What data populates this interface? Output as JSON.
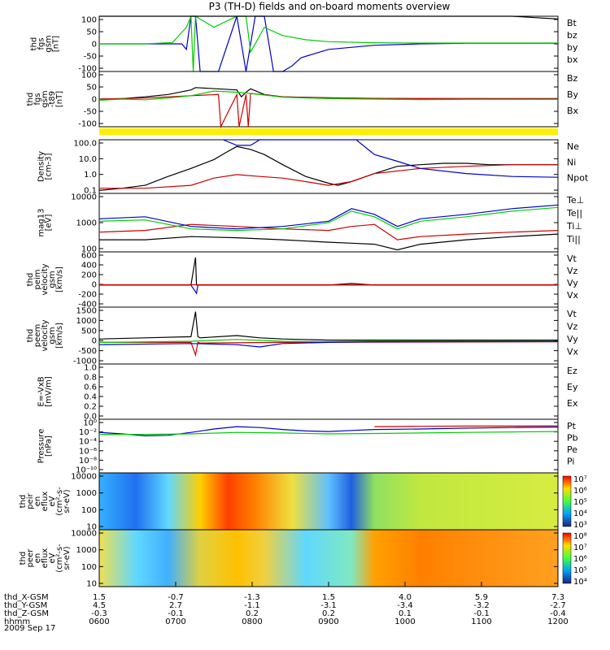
{
  "title": "P3 (TH-D) fields and on-board moments overview",
  "date_label": "2009 Sep 17",
  "colors": {
    "black": "#000000",
    "red": "#cc0000",
    "green": "#00cc00",
    "blue": "#0000cc",
    "yellow": "#ffee00"
  },
  "chart_data": [
    {
      "type": "line",
      "id": "fgs",
      "ylabel": [
        "thd",
        "fgs",
        "gsm",
        "[nT]"
      ],
      "yticks": [
        "100",
        "50",
        "0",
        "-50",
        "-100"
      ],
      "ylim": [
        -100,
        100
      ],
      "legend": [
        {
          "name": "Bt",
          "color": "#000000"
        },
        {
          "name": "bz",
          "color": "#cc0000"
        },
        {
          "name": "by",
          "color": "#00cc00"
        },
        {
          "name": "bx",
          "color": "#0000cc"
        }
      ],
      "series": [
        {
          "name": "bx",
          "color": "#0000cc",
          "x": [
            0,
            0.1,
            0.16,
            0.18,
            0.19,
            0.2,
            0.21,
            0.22,
            0.26,
            0.3,
            0.32,
            0.34,
            0.36,
            0.38,
            0.4,
            0.42,
            0.44,
            0.5,
            0.6,
            0.7,
            0.8,
            0.9,
            1.0
          ],
          "y": [
            0,
            0,
            0,
            0,
            -20,
            100,
            100,
            -100,
            -100,
            100,
            -100,
            100,
            100,
            -100,
            -100,
            -80,
            -50,
            -20,
            -5,
            0,
            2,
            2,
            2
          ]
        },
        {
          "name": "by",
          "color": "#00cc00",
          "x": [
            0,
            0.1,
            0.16,
            0.19,
            0.2,
            0.205,
            0.21,
            0.25,
            0.3,
            0.32,
            0.33,
            0.36,
            0.4,
            0.45,
            0.5,
            0.6,
            0.7,
            0.8,
            0.9,
            1.0
          ],
          "y": [
            0,
            0,
            5,
            60,
            100,
            -100,
            100,
            60,
            100,
            100,
            -30,
            60,
            30,
            15,
            8,
            4,
            3,
            3,
            3,
            3
          ]
        },
        {
          "name": "Bt",
          "color": "#000000",
          "x": [
            0,
            0.85,
            0.9,
            0.95,
            1.0
          ],
          "y": [
            100,
            100,
            100,
            95,
            90
          ]
        }
      ]
    },
    {
      "type": "line",
      "id": "fgs_dsl",
      "ylabel": [
        "thd",
        "fgs",
        "gsm",
        "-t89",
        "[nT]"
      ],
      "yticks": [
        "100",
        "50",
        "0",
        "-50",
        "-100"
      ],
      "ylim": [
        -120,
        120
      ],
      "legend": [
        {
          "name": "Bz",
          "color": "#000000"
        },
        {
          "name": "By",
          "color": "#cc0000"
        },
        {
          "name": "Bx",
          "color": "#00cc00"
        }
      ],
      "series": [
        {
          "name": "Bz",
          "color": "#000000",
          "x": [
            0,
            0.05,
            0.1,
            0.15,
            0.2,
            0.21,
            0.3,
            0.31,
            0.32,
            0.33,
            0.36,
            0.4,
            0.5,
            0.6,
            0.7,
            0.8,
            0.9,
            1.0
          ],
          "y": [
            0,
            2,
            10,
            20,
            40,
            50,
            40,
            10,
            30,
            45,
            20,
            10,
            6,
            3,
            2,
            2,
            2,
            2
          ]
        },
        {
          "name": "By",
          "color": "#cc0000",
          "x": [
            0,
            0.1,
            0.2,
            0.26,
            0.265,
            0.3,
            0.305,
            0.32,
            0.325,
            0.33,
            0.4,
            0.5,
            0.7,
            1.0
          ],
          "y": [
            0,
            5,
            15,
            20,
            -120,
            20,
            -120,
            20,
            -120,
            25,
            10,
            5,
            2,
            1
          ]
        },
        {
          "name": "Bx",
          "color": "#00cc00",
          "x": [
            0,
            0.05,
            0.1,
            0.15,
            0.2,
            0.25,
            0.3,
            0.35,
            0.4,
            0.5,
            0.6,
            0.7,
            0.8,
            1.0
          ],
          "y": [
            -5,
            0,
            -3,
            5,
            15,
            35,
            30,
            20,
            8,
            2,
            0,
            -2,
            -1,
            -1
          ]
        }
      ]
    },
    {
      "type": "line",
      "id": "density",
      "ylabel": [
        "Density",
        "[cm-3]"
      ],
      "yticks": [
        "100.0",
        "10.0",
        "1.0",
        "0.1"
      ],
      "log": true,
      "ylim": [
        0.1,
        150
      ],
      "legend": [
        {
          "name": "Ne",
          "color": "#cc0000"
        },
        {
          "name": "Ni",
          "color": "#000000"
        },
        {
          "name": "Npot",
          "color": "#0000cc"
        }
      ],
      "series": [
        {
          "name": "Ni",
          "color": "#000000",
          "x": [
            0,
            0.05,
            0.1,
            0.15,
            0.2,
            0.25,
            0.28,
            0.3,
            0.33,
            0.36,
            0.4,
            0.45,
            0.5,
            0.52,
            0.55,
            0.6,
            0.65,
            0.7,
            0.75,
            0.8,
            0.85,
            0.9,
            0.95,
            1.0
          ],
          "y": [
            0.15,
            0.2,
            0.3,
            1,
            3,
            10,
            30,
            60,
            40,
            20,
            5,
            1,
            0.4,
            0.3,
            0.5,
            1.5,
            4,
            5,
            6,
            6,
            5,
            5,
            5,
            5
          ]
        },
        {
          "name": "Ne",
          "color": "#cc0000",
          "x": [
            0,
            0.1,
            0.2,
            0.25,
            0.3,
            0.35,
            0.4,
            0.45,
            0.5,
            0.55,
            0.6,
            0.7,
            0.8,
            0.9,
            1.0
          ],
          "y": [
            0.2,
            0.2,
            0.3,
            0.8,
            1.3,
            1.0,
            0.8,
            0.5,
            0.3,
            0.5,
            1.5,
            3,
            4,
            5,
            5
          ]
        },
        {
          "name": "Npot",
          "color": "#0000cc",
          "x": [
            0.27,
            0.3,
            0.33,
            0.35,
            0.56,
            0.6,
            0.65,
            0.7,
            0.8,
            0.9,
            1.0
          ],
          "y": [
            150,
            70,
            70,
            150,
            150,
            20,
            8,
            3,
            1.5,
            1,
            0.9
          ]
        }
      ]
    },
    {
      "type": "line",
      "id": "temp",
      "ylabel": [
        "mag13",
        "[eV]"
      ],
      "yticks": [
        "10000",
        "1000",
        "100"
      ],
      "log": true,
      "ylim": [
        50,
        10000
      ],
      "legend": [
        {
          "name": "Te⊥",
          "color": "#cc0000"
        },
        {
          "name": "Te||",
          "color": "#000000"
        },
        {
          "name": "Ti⊥",
          "color": "#0000cc"
        },
        {
          "name": "Ti||",
          "color": "#00cc00"
        }
      ],
      "series": [
        {
          "name": "Te",
          "color": "#000000",
          "x": [
            0,
            0.1,
            0.2,
            0.3,
            0.4,
            0.5,
            0.55,
            0.6,
            0.65,
            0.7,
            0.8,
            0.9,
            1.0
          ],
          "y": [
            150,
            150,
            200,
            180,
            150,
            120,
            110,
            100,
            60,
            100,
            150,
            200,
            250
          ]
        },
        {
          "name": "Te⊥",
          "color": "#cc0000",
          "x": [
            0,
            0.1,
            0.2,
            0.3,
            0.4,
            0.5,
            0.55,
            0.6,
            0.65,
            0.7,
            0.8,
            0.9,
            1.0
          ],
          "y": [
            300,
            350,
            600,
            500,
            400,
            350,
            500,
            600,
            150,
            200,
            250,
            300,
            350
          ]
        },
        {
          "name": "Ti⊥",
          "color": "#0000cc",
          "x": [
            0,
            0.1,
            0.2,
            0.3,
            0.4,
            0.5,
            0.55,
            0.6,
            0.65,
            0.7,
            0.8,
            0.9,
            1.0
          ],
          "y": [
            1000,
            1200,
            500,
            400,
            500,
            800,
            2500,
            1500,
            500,
            1000,
            1500,
            2500,
            3500
          ]
        },
        {
          "name": "Ti||",
          "color": "#00cc00",
          "x": [
            0,
            0.1,
            0.2,
            0.3,
            0.4,
            0.5,
            0.55,
            0.6,
            0.65,
            0.7,
            0.8,
            0.9,
            1.0
          ],
          "y": [
            800,
            900,
            400,
            350,
            400,
            700,
            2000,
            1200,
            400,
            800,
            1200,
            2000,
            2800
          ]
        }
      ]
    },
    {
      "type": "line",
      "id": "peim_vel",
      "ylabel": [
        "thd",
        "peim",
        "velocity",
        "gsm",
        "[km/s]"
      ],
      "yticks": [
        "600",
        "400",
        "200",
        "0",
        "-200",
        "-400"
      ],
      "ylim": [
        -400,
        600
      ],
      "legend": [
        {
          "name": "Vt",
          "color": "#000000"
        },
        {
          "name": "Vz",
          "color": "#cc0000"
        },
        {
          "name": "Vy",
          "color": "#00cc00"
        },
        {
          "name": "Vx",
          "color": "#0000cc"
        }
      ],
      "series": [
        {
          "name": "Vt",
          "color": "#000000",
          "x": [
            0,
            0.2,
            0.21,
            0.212,
            0.22,
            0.5,
            0.55,
            0.6,
            1.0
          ],
          "y": [
            0,
            0,
            500,
            0,
            0,
            0,
            30,
            0,
            0
          ]
        },
        {
          "name": "Vx",
          "color": "#0000cc",
          "x": [
            0,
            0.2,
            0.212,
            0.215,
            0.22,
            1.0
          ],
          "y": [
            0,
            0,
            -150,
            0,
            0,
            0
          ]
        },
        {
          "name": "Vz",
          "color": "#cc0000",
          "x": [
            0,
            1.0
          ],
          "y": [
            5,
            5
          ]
        }
      ]
    },
    {
      "type": "line",
      "id": "peem_vel",
      "ylabel": [
        "thd",
        "peem",
        "velocity",
        "gsm",
        "[km/s]"
      ],
      "yticks": [
        "1500",
        "1000",
        "500",
        "0",
        "-500",
        "-1000"
      ],
      "ylim": [
        -1000,
        1500
      ],
      "legend": [
        {
          "name": "Vt",
          "color": "#000000"
        },
        {
          "name": "Vz",
          "color": "#cc0000"
        },
        {
          "name": "Vy",
          "color": "#00cc00"
        },
        {
          "name": "Vx",
          "color": "#0000cc"
        }
      ],
      "series": [
        {
          "name": "Vt",
          "color": "#000000",
          "x": [
            0,
            0.1,
            0.2,
            0.21,
            0.215,
            0.22,
            0.3,
            0.35,
            0.4,
            0.5,
            0.6,
            1.0
          ],
          "y": [
            100,
            150,
            200,
            1300,
            200,
            150,
            250,
            150,
            100,
            50,
            50,
            50
          ]
        },
        {
          "name": "Vz",
          "color": "#cc0000",
          "x": [
            0,
            0.2,
            0.21,
            0.215,
            0.22,
            0.4,
            1.0
          ],
          "y": [
            -50,
            -50,
            -600,
            -50,
            -80,
            -50,
            -20
          ]
        },
        {
          "name": "Vy",
          "color": "#00cc00",
          "x": [
            0,
            0.2,
            0.3,
            0.4,
            0.5,
            0.6,
            1.0
          ],
          "y": [
            -50,
            0,
            80,
            0,
            -20,
            0,
            0
          ]
        },
        {
          "name": "Vx",
          "color": "#0000cc",
          "x": [
            0,
            0.2,
            0.3,
            0.35,
            0.4,
            0.5,
            0.6,
            1.0
          ],
          "y": [
            -150,
            -100,
            -150,
            -250,
            -100,
            -50,
            -20,
            -10
          ]
        }
      ]
    },
    {
      "type": "line",
      "id": "efield",
      "ylabel": [
        "E=-VxB",
        "[mV/m]"
      ],
      "yticks": [
        "1.0",
        "0.8",
        "0.6",
        "0.4",
        "0.2",
        "0.0"
      ],
      "ylim": [
        0,
        1
      ],
      "legend": [
        {
          "name": "Ez",
          "color": "#cc0000"
        },
        {
          "name": "Ey",
          "color": "#00cc00"
        },
        {
          "name": "Ex",
          "color": "#0000cc"
        }
      ],
      "series": []
    },
    {
      "type": "line",
      "id": "pressure",
      "ylabel": [
        "Pressure",
        "[nPa]"
      ],
      "yticks": [
        "10⁰",
        "10⁻²",
        "10⁻⁴",
        "10⁻⁶",
        "10⁻⁸",
        "10⁻¹⁰"
      ],
      "log": true,
      "ylim": [
        1e-10,
        10
      ],
      "legend": [
        {
          "name": "Pt",
          "color": "#000000"
        },
        {
          "name": "Pb",
          "color": "#cc0000"
        },
        {
          "name": "Pe",
          "color": "#00cc00"
        },
        {
          "name": "Pi",
          "color": "#0000cc"
        }
      ],
      "series": [
        {
          "name": "Pi",
          "color": "#0000cc",
          "x": [
            0,
            0.05,
            0.1,
            0.15,
            0.2,
            0.25,
            0.3,
            0.35,
            0.4,
            0.45,
            0.5,
            0.55,
            0.6,
            0.7,
            0.8,
            0.9,
            1.0
          ],
          "y": [
            0.02,
            0.01,
            0.004,
            0.005,
            0.02,
            0.1,
            0.3,
            0.2,
            0.08,
            0.04,
            0.03,
            0.05,
            0.08,
            0.1,
            0.15,
            0.2,
            0.25
          ]
        },
        {
          "name": "Pe",
          "color": "#00cc00",
          "x": [
            0,
            0.1,
            0.2,
            0.3,
            0.4,
            0.5,
            0.6,
            0.7,
            0.8,
            0.9,
            1.0
          ],
          "y": [
            0.008,
            0.008,
            0.01,
            0.02,
            0.015,
            0.01,
            0.012,
            0.015,
            0.02,
            0.025,
            0.03
          ]
        },
        {
          "name": "Pb",
          "color": "#cc0000",
          "x": [
            0.6,
            0.7,
            0.8,
            0.9,
            1.0
          ],
          "y": [
            0.3,
            0.35,
            0.4,
            0.4,
            0.45
          ]
        }
      ]
    },
    {
      "type": "heatmap",
      "id": "peir",
      "ylabel": [
        "thd",
        "peir",
        "en",
        "eflux",
        "eV",
        "(cm²-s-",
        "sr-eV)"
      ],
      "yticks": [
        "10000",
        "1000",
        "100",
        "10"
      ],
      "colorbar": [
        "10⁷",
        "10⁶",
        "10⁵",
        "10⁴",
        "10³"
      ]
    },
    {
      "type": "heatmap",
      "id": "peer",
      "ylabel": [
        "thd",
        "peer",
        "en",
        "eflux",
        "eV",
        "(cm²-s-",
        "sr-eV)"
      ],
      "yticks": [
        "10000",
        "1000",
        "100",
        "10"
      ],
      "colorbar": [
        "10⁸",
        "10⁷",
        "10⁶",
        "10⁵",
        "10⁴"
      ]
    }
  ],
  "xaxis": {
    "rows": [
      {
        "label": "thd_X-GSM",
        "values": [
          "1.5",
          "-0.7",
          "-1.3",
          "1.5",
          "4.0",
          "5.9",
          "7.3"
        ]
      },
      {
        "label": "thd_Y-GSM",
        "values": [
          "4.5",
          "2.7",
          "-1.1",
          "-3.1",
          "-3.4",
          "-3.2",
          "-2.7"
        ]
      },
      {
        "label": "thd_Z-GSM",
        "values": [
          "-0.3",
          "-0.1",
          "0.2",
          "0.2",
          "0.1",
          "-0.1",
          "-0.4"
        ]
      },
      {
        "label": "hhmm",
        "values": [
          "0600",
          "0700",
          "0800",
          "0900",
          "1000",
          "1100",
          "1200"
        ]
      }
    ]
  }
}
